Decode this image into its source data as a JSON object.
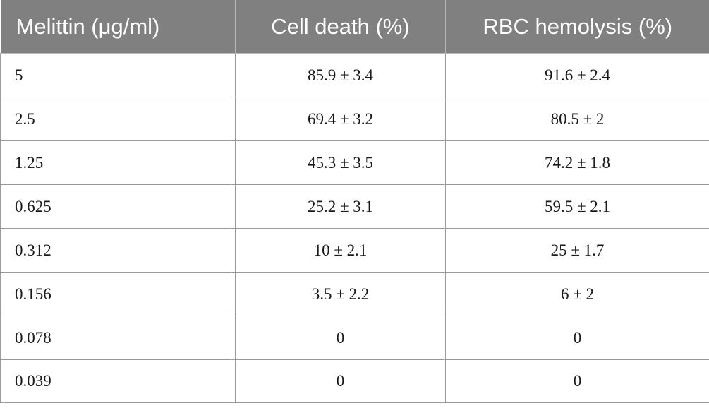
{
  "table": {
    "headers": [
      "Melittin (μg/ml)",
      "Cell death (%)",
      "RBC hemolysis (%)"
    ],
    "rows": [
      [
        "5",
        "85.9 ± 3.4",
        "91.6 ± 2.4"
      ],
      [
        "2.5",
        "69.4 ± 3.2",
        "80.5 ± 2"
      ],
      [
        "1.25",
        "45.3 ± 3.5",
        "74.2 ± 1.8"
      ],
      [
        "0.625",
        "25.2 ± 3.1",
        "59.5 ± 2.1"
      ],
      [
        "0.312",
        "10 ± 2.1",
        "25 ± 1.7"
      ],
      [
        "0.156",
        "3.5 ± 2.2",
        "6 ± 2"
      ],
      [
        "0.078",
        "0",
        "0"
      ],
      [
        "0.039",
        "0",
        "0"
      ]
    ]
  },
  "colors": {
    "header_background": "#808080",
    "header_text": "#ffffff",
    "grid_line": "#9a9a9a",
    "body_text": "#1a1a1a"
  }
}
